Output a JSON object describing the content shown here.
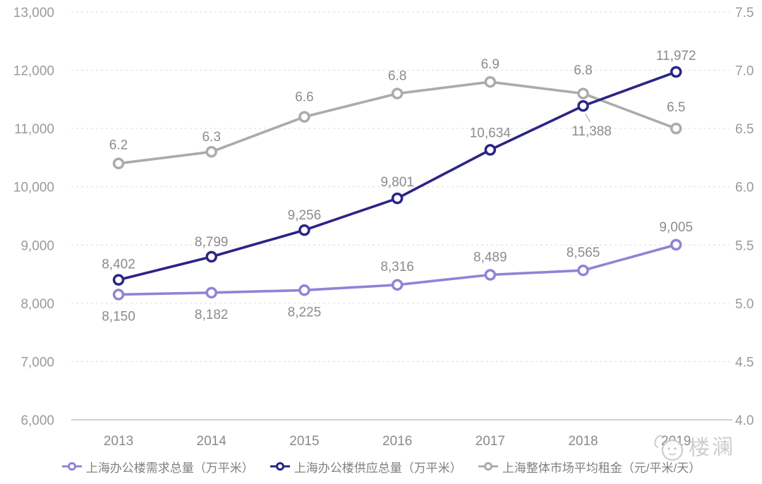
{
  "chart_data": {
    "type": "line",
    "title": "",
    "x_labels": [
      "2013",
      "2014",
      "2015",
      "2016",
      "2017",
      "2018",
      "2019"
    ],
    "left_axis": {
      "min": 6000,
      "max": 13000,
      "step": 1000,
      "tick_labels": [
        "6,000",
        "7,000",
        "8,000",
        "9,000",
        "10,000",
        "11,000",
        "12,000",
        "13,000"
      ]
    },
    "right_axis": {
      "min": 4.0,
      "max": 7.5,
      "step": 0.5,
      "tick_labels": [
        "4.0",
        "4.5",
        "5.0",
        "5.5",
        "6.0",
        "6.5",
        "7.0",
        "7.5"
      ]
    },
    "grid": {
      "horizontal": true,
      "style": "dashed"
    },
    "legend_position": "bottom",
    "series": [
      {
        "key": "demand",
        "name": "上海办公楼需求总量（万平米）",
        "axis": "left",
        "color": "#8d85d6",
        "values": [
          8150,
          8182,
          8225,
          8316,
          8489,
          8565,
          9005
        ],
        "data_labels": [
          "8,150",
          "8,182",
          "8,225",
          "8,316",
          "8,489",
          "8,565",
          "9,005"
        ],
        "label_offsets": [
          [
            0,
            37
          ],
          [
            0,
            37
          ],
          [
            0,
            37
          ],
          [
            0,
            -20
          ],
          [
            0,
            -19
          ],
          [
            0,
            -19
          ],
          [
            0,
            -19
          ]
        ]
      },
      {
        "key": "supply",
        "name": "上海办公楼供应总量（万平米）",
        "axis": "left",
        "color": "#2b2487",
        "values": [
          8402,
          8799,
          9256,
          9801,
          10634,
          11388,
          11972
        ],
        "data_labels": [
          "8,402",
          "8,799",
          "9,256",
          "9,801",
          "10,634",
          "11,388",
          "11,972"
        ],
        "label_offsets": [
          [
            0,
            -16
          ],
          [
            0,
            -15
          ],
          [
            0,
            -15
          ],
          [
            0,
            -17
          ],
          [
            0,
            -18
          ],
          [
            12,
            42
          ],
          [
            0,
            -17
          ]
        ],
        "leader": {
          "index": 5,
          "from": [
            3,
            11
          ],
          "to": [
            10,
            23
          ]
        }
      },
      {
        "key": "rent",
        "name": "上海整体市场平均租金（元/平米/天）",
        "axis": "right",
        "color": "#ababab",
        "values": [
          6.2,
          6.3,
          6.6,
          6.8,
          6.9,
          6.8,
          6.5
        ],
        "data_labels": [
          "6.2",
          "6.3",
          "6.6",
          "6.8",
          "6.9",
          "6.8",
          "6.5"
        ],
        "label_offsets": [
          [
            0,
            -20
          ],
          [
            0,
            -15
          ],
          [
            0,
            -22
          ],
          [
            0,
            -19
          ],
          [
            0,
            -19
          ],
          [
            0,
            -27
          ],
          [
            0,
            -24
          ]
        ]
      }
    ]
  },
  "watermark": {
    "text": "楼澜"
  },
  "colors": {
    "background": "#ffffff",
    "grid_line": "#dcdcdc",
    "axis_line": "#c2c2c2",
    "axis_text": "#9a9a9a",
    "x_axis_text": "#8a8a8a",
    "data_label_text": "#8c8c8c",
    "legend_text": "#7f7f7f",
    "leader_line": "#9a9a9a",
    "watermark": "#c9c9c9"
  }
}
